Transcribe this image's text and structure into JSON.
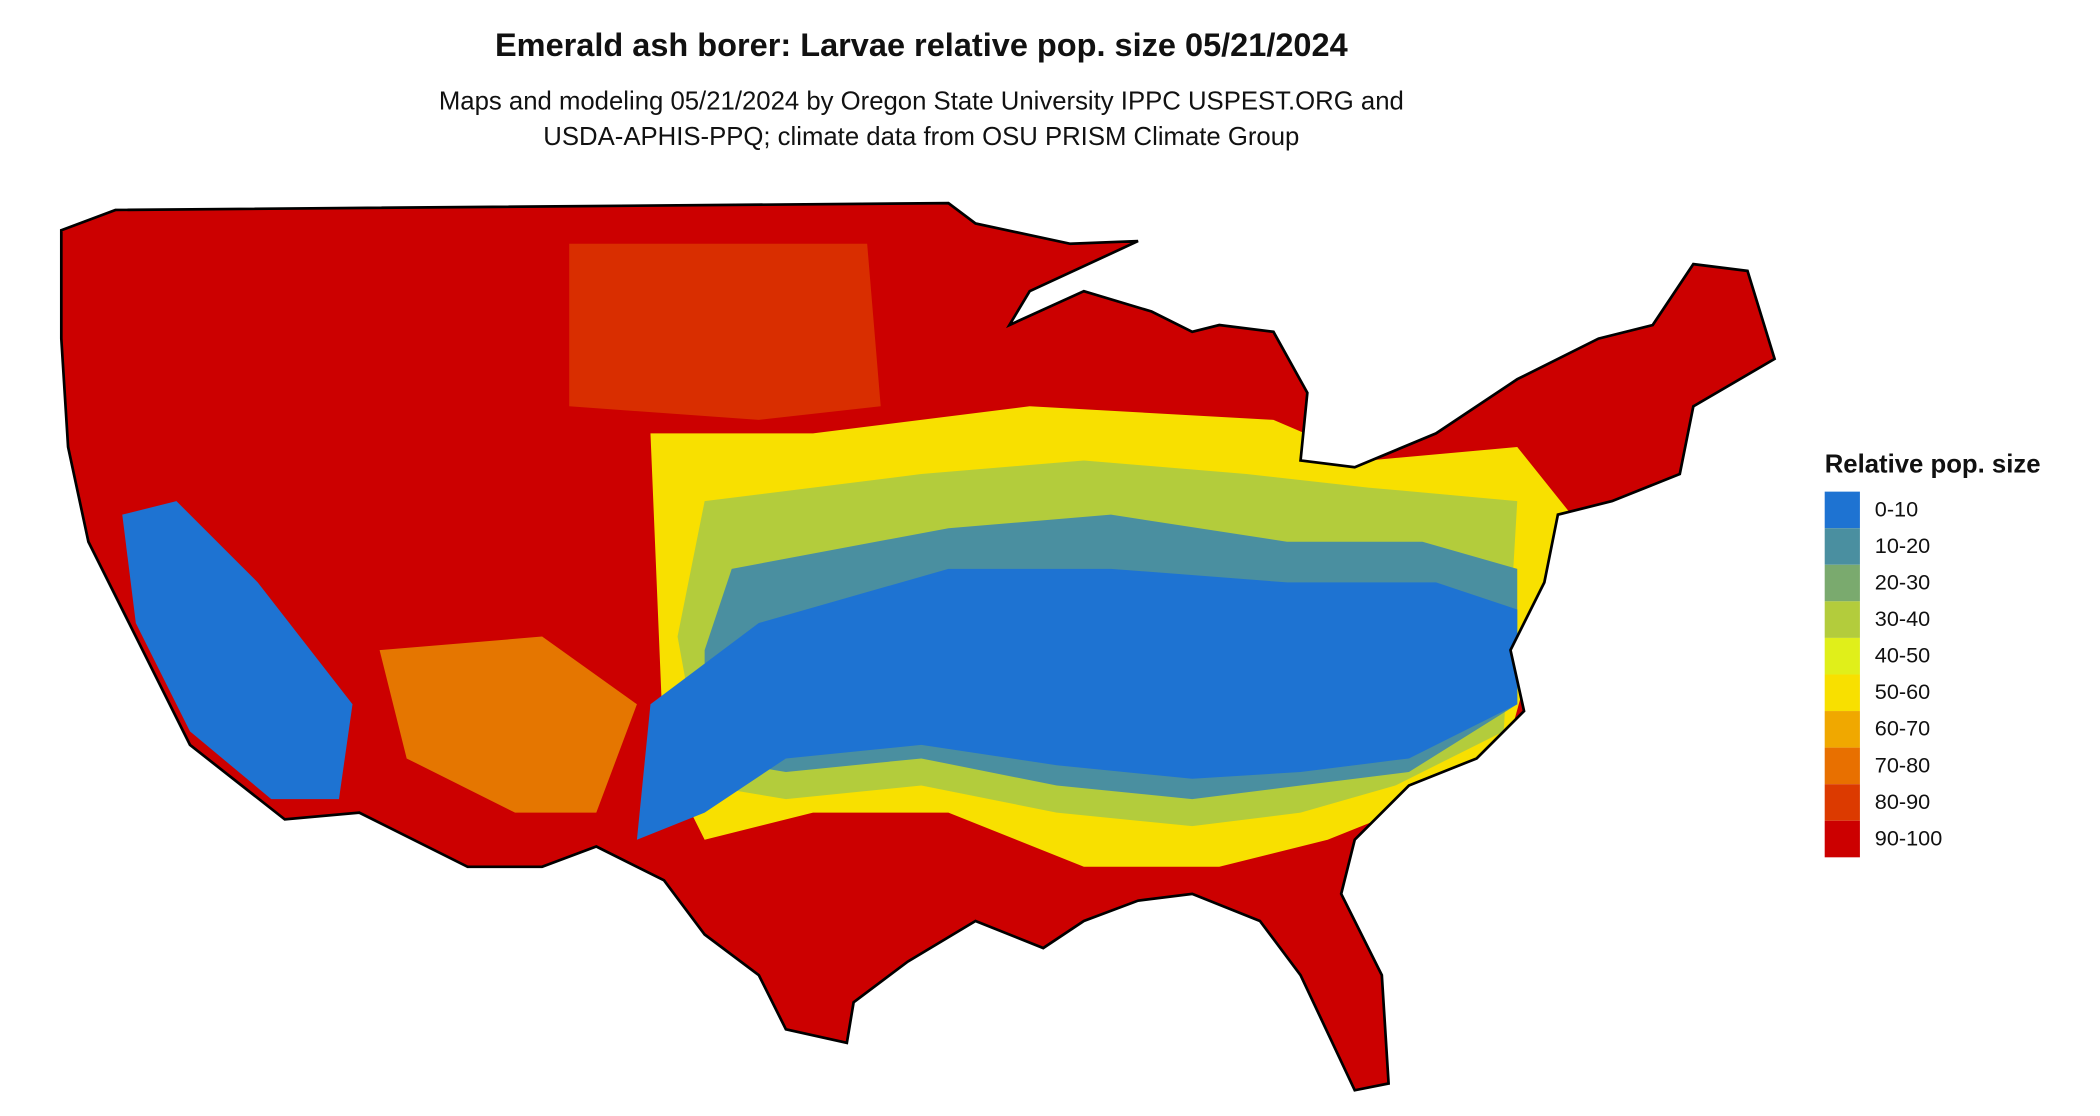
{
  "title": "Emerald ash borer: Larvae relative pop. size 05/21/2024",
  "subtitle": [
    "Maps and modeling 05/21/2024 by Oregon State University IPPC USPEST.ORG and",
    "USDA-APHIS-PPQ; climate data from OSU PRISM Climate Group"
  ],
  "legend": {
    "title": "Relative pop. size",
    "items": [
      {
        "label": "0-10",
        "color": "#1e73d2"
      },
      {
        "label": "10-20",
        "color": "#4a8fa0"
      },
      {
        "label": "20-30",
        "color": "#7aaa6e"
      },
      {
        "label": "30-40",
        "color": "#b3cc3c"
      },
      {
        "label": "40-50",
        "color": "#e0ef1a"
      },
      {
        "label": "50-60",
        "color": "#f8e000"
      },
      {
        "label": "60-70",
        "color": "#f0a800"
      },
      {
        "label": "70-80",
        "color": "#e87000"
      },
      {
        "label": "80-90",
        "color": "#dc3a00"
      },
      {
        "label": "90-100",
        "color": "#cc0000"
      }
    ]
  }
}
